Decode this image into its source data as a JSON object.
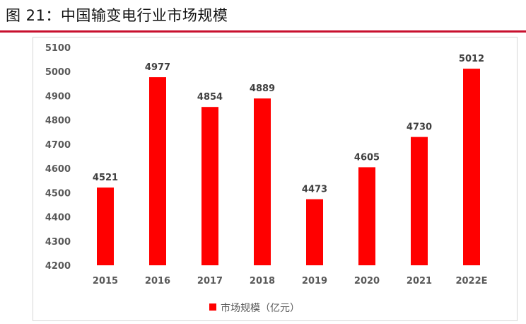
{
  "figure": {
    "title": "图 21：中国输变电行业市场规模"
  },
  "chart_data": {
    "type": "bar",
    "categories": [
      "2015",
      "2016",
      "2017",
      "2018",
      "2019",
      "2020",
      "2021",
      "2022E"
    ],
    "series": [
      {
        "name": "市场规模（亿元）",
        "values": [
          4521,
          4977,
          4854,
          4889,
          4473,
          4605,
          4730,
          5012
        ],
        "color": "#ff0000"
      }
    ],
    "y_ticks": [
      4200,
      4300,
      4400,
      4500,
      4600,
      4700,
      4800,
      4900,
      5000,
      5100
    ],
    "ylim": [
      4200,
      5100
    ],
    "grid": false,
    "legend": "bottom-center",
    "data_labels": true
  }
}
